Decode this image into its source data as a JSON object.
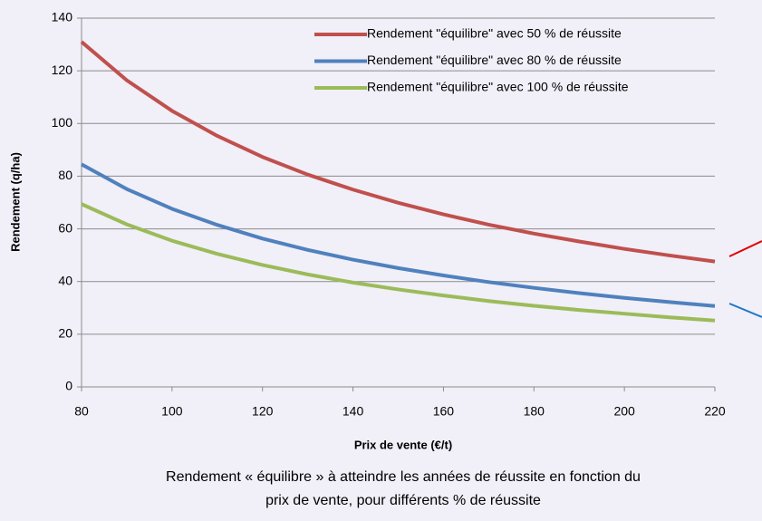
{
  "chart_data": {
    "type": "line",
    "x": [
      80,
      90,
      100,
      110,
      120,
      130,
      140,
      150,
      160,
      170,
      180,
      190,
      200,
      210,
      220
    ],
    "series": [
      {
        "name": "Rendement \"équilibre\" avec 50 % de réussite",
        "color": "#c0504d",
        "values": [
          131,
          116.4,
          104.8,
          95.3,
          87.3,
          80.6,
          74.9,
          69.9,
          65.5,
          61.6,
          58.2,
          55.2,
          52.4,
          49.9,
          47.6
        ]
      },
      {
        "name": "Rendement \"équilibre\" avec 80 % de réussite",
        "color": "#4f81bd",
        "values": [
          84.5,
          75.1,
          67.6,
          61.5,
          56.3,
          52.0,
          48.3,
          45.1,
          42.3,
          39.8,
          37.6,
          35.6,
          33.8,
          32.2,
          30.7
        ]
      },
      {
        "name": "Rendement \"équilibre\" avec 100 % de réussite",
        "color": "#9bbb59",
        "values": [
          69.4,
          61.7,
          55.5,
          50.5,
          46.3,
          42.7,
          39.6,
          37.0,
          34.7,
          32.6,
          30.8,
          29.2,
          27.8,
          26.4,
          25.2
        ]
      }
    ],
    "xlim": [
      80,
      220
    ],
    "xticks": [
      80,
      100,
      120,
      140,
      160,
      180,
      200,
      220
    ],
    "ylim": [
      0,
      140
    ],
    "yticks": [
      0,
      20,
      40,
      60,
      80,
      100,
      120,
      140
    ],
    "grid": true,
    "legend": "top-right",
    "x_label": "Prix de vente (€/t)",
    "y_label": "Rendement (q/ha)",
    "caption": [
      "Rendement « équilibre » à atteindre les années de réussite en fonction du",
      "prix de vente,  pour différents % de réussite"
    ]
  }
}
